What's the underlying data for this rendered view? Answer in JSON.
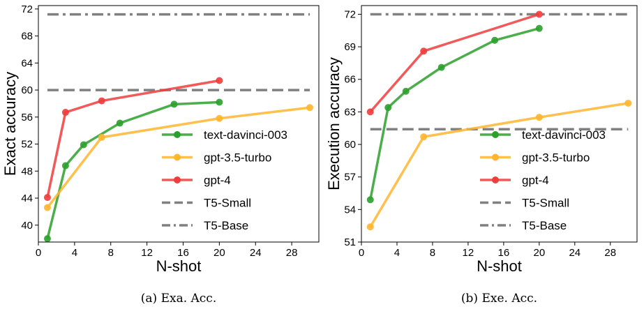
{
  "chart_data": [
    {
      "type": "line",
      "caption": "(a) Exa. Acc.",
      "xlabel": "N-shot",
      "ylabel": "Exact accuracy",
      "xlim": [
        0,
        31
      ],
      "ylim": [
        37.5,
        72.5
      ],
      "xticks": [
        0,
        4,
        8,
        12,
        16,
        20,
        24,
        28
      ],
      "yticks": [
        40,
        44,
        48,
        52,
        56,
        60,
        64,
        68,
        72
      ],
      "grid": false,
      "legend_position": "lower-right",
      "series": [
        {
          "name": "text-davinci-003",
          "color": "#2ca02c",
          "x": [
            1,
            3,
            5,
            9,
            15,
            20
          ],
          "y": [
            38.0,
            48.8,
            51.9,
            55.1,
            57.9,
            58.2
          ]
        },
        {
          "name": "gpt-3.5-turbo",
          "color": "#ffb52e",
          "x": [
            1,
            7,
            20,
            30
          ],
          "y": [
            42.6,
            53.0,
            55.8,
            57.4
          ]
        },
        {
          "name": "gpt-4",
          "color": "#f03c3c",
          "x": [
            1,
            3,
            7,
            20
          ],
          "y": [
            44.1,
            56.7,
            58.4,
            61.4
          ]
        }
      ],
      "reference_lines": [
        {
          "name": "T5-Small",
          "style": "dashed",
          "color": "#808080",
          "y": 60.0
        },
        {
          "name": "T5-Base",
          "style": "dashdot",
          "color": "#808080",
          "y": 71.2
        }
      ]
    },
    {
      "type": "line",
      "caption": "(b) Exe. Acc.",
      "xlabel": "N-shot",
      "ylabel": "Execution accuracy",
      "xlim": [
        0,
        31
      ],
      "ylim": [
        51,
        72.8
      ],
      "xticks": [
        0,
        4,
        8,
        12,
        16,
        20,
        24,
        28
      ],
      "yticks": [
        51,
        54,
        57,
        60,
        63,
        66,
        69,
        72
      ],
      "grid": false,
      "legend_position": "lower-right",
      "series": [
        {
          "name": "text-davinci-003",
          "color": "#2ca02c",
          "x": [
            1,
            3,
            5,
            9,
            15,
            20
          ],
          "y": [
            54.9,
            63.4,
            64.9,
            67.1,
            69.6,
            70.7
          ]
        },
        {
          "name": "gpt-3.5-turbo",
          "color": "#ffb52e",
          "x": [
            1,
            7,
            20,
            30
          ],
          "y": [
            52.4,
            60.7,
            62.5,
            63.8
          ]
        },
        {
          "name": "gpt-4",
          "color": "#f03c3c",
          "x": [
            1,
            7,
            20
          ],
          "y": [
            63.0,
            68.6,
            72.0
          ]
        }
      ],
      "reference_lines": [
        {
          "name": "T5-Small",
          "style": "dashed",
          "color": "#808080",
          "y": 61.4
        },
        {
          "name": "T5-Base",
          "style": "dashdot",
          "color": "#808080",
          "y": 72.0
        }
      ]
    }
  ]
}
